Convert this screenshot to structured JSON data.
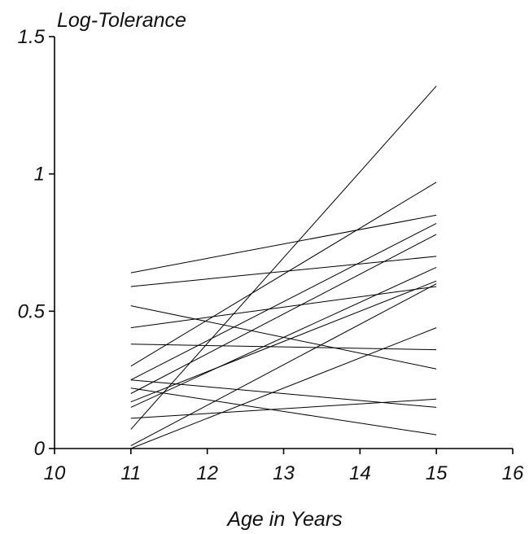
{
  "chart_data": {
    "type": "line",
    "title": "",
    "ylabel": "Log-Tolerance",
    "xlabel": "Age in Years",
    "xlim": [
      10,
      16
    ],
    "ylim": [
      0,
      1.5
    ],
    "x_ticks": [
      10,
      11,
      12,
      13,
      14,
      15,
      16
    ],
    "x_tick_labels": [
      "10",
      "11",
      "12",
      "13",
      "14",
      "15",
      "16"
    ],
    "y_ticks": [
      0,
      0.5,
      1,
      1.5
    ],
    "y_tick_labels": [
      "0",
      "0.5",
      "1",
      "1.5"
    ],
    "grid": false,
    "x": [
      11,
      15
    ],
    "series": [
      {
        "values": [
          0.64,
          0.85
        ]
      },
      {
        "values": [
          0.59,
          0.7
        ]
      },
      {
        "values": [
          0.52,
          0.29
        ]
      },
      {
        "values": [
          0.44,
          0.59
        ]
      },
      {
        "values": [
          0.38,
          0.36
        ]
      },
      {
        "values": [
          0.3,
          0.97
        ]
      },
      {
        "values": [
          0.25,
          0.82
        ]
      },
      {
        "values": [
          0.25,
          0.15
        ]
      },
      {
        "values": [
          0.22,
          0.05
        ]
      },
      {
        "values": [
          0.2,
          0.78
        ]
      },
      {
        "values": [
          0.17,
          0.61
        ]
      },
      {
        "values": [
          0.15,
          0.66
        ]
      },
      {
        "values": [
          0.11,
          0.18
        ]
      },
      {
        "values": [
          0.07,
          1.32
        ]
      },
      {
        "values": [
          0.01,
          0.6
        ]
      },
      {
        "values": [
          0.0,
          0.44
        ]
      }
    ]
  }
}
